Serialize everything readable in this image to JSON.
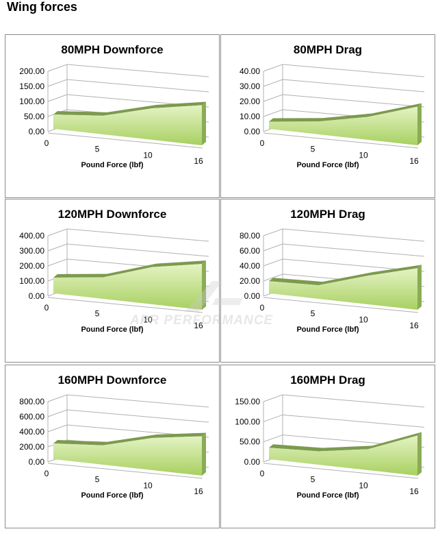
{
  "page_title": "Wing forces",
  "watermark": "APR PERFORMANCE",
  "colors": {
    "area_fill": "#a8d060",
    "area_light": "#e4f3c4",
    "area_edge": "#7c9a4e",
    "grid": "#b0b0b0"
  },
  "chart_data": [
    {
      "type": "area",
      "title": "80MPH Downforce",
      "xlabel": "Pound Force (lbf)",
      "categories": [
        "0",
        "5",
        "10",
        "16"
      ],
      "values": [
        50,
        65,
        110,
        140
      ],
      "yticks": [
        "0.00",
        "50.00",
        "100.00",
        "150.00",
        "200.00"
      ],
      "ylim": [
        0,
        200
      ],
      "grid": true,
      "style": "3d"
    },
    {
      "type": "area",
      "title": "80MPH Drag",
      "xlabel": "Pound Force (lbf)",
      "categories": [
        "0",
        "5",
        "10",
        "16"
      ],
      "values": [
        5,
        9,
        16,
        27
      ],
      "yticks": [
        "0.00",
        "10.00",
        "20.00",
        "30.00",
        "40.00"
      ],
      "ylim": [
        0,
        40
      ],
      "grid": true,
      "style": "3d"
    },
    {
      "type": "area",
      "title": "120MPH Downforce",
      "xlabel": "Pound Force (lbf)",
      "categories": [
        "0",
        "5",
        "10",
        "16"
      ],
      "values": [
        110,
        150,
        260,
        320
      ],
      "yticks": [
        "0.00",
        "100.00",
        "200.00",
        "300.00",
        "400.00"
      ],
      "ylim": [
        0,
        400
      ],
      "grid": true,
      "style": "3d"
    },
    {
      "type": "area",
      "title": "120MPH Drag",
      "xlabel": "Pound Force (lbf)",
      "categories": [
        "0",
        "5",
        "10",
        "16"
      ],
      "values": [
        17,
        19,
        40,
        58
      ],
      "yticks": [
        "0.00",
        "20.00",
        "40.00",
        "60.00",
        "80.00"
      ],
      "ylim": [
        0,
        80
      ],
      "grid": true,
      "style": "3d"
    },
    {
      "type": "area",
      "title": "160MPH Downforce",
      "xlabel": "Pound Force (lbf)",
      "categories": [
        "0",
        "5",
        "10",
        "16"
      ],
      "values": [
        220,
        270,
        450,
        550
      ],
      "yticks": [
        "0.00",
        "200.00",
        "400.00",
        "600.00",
        "800.00"
      ],
      "ylim": [
        0,
        800
      ],
      "grid": true,
      "style": "3d"
    },
    {
      "type": "area",
      "title": "160MPH Drag",
      "xlabel": "Pound Force (lbf)",
      "categories": [
        "0",
        "5",
        "10",
        "16"
      ],
      "values": [
        30,
        35,
        55,
        105
      ],
      "yticks": [
        "0.00",
        "50.00",
        "100.00",
        "150.00"
      ],
      "ylim": [
        0,
        150
      ],
      "grid": true,
      "style": "3d"
    }
  ]
}
